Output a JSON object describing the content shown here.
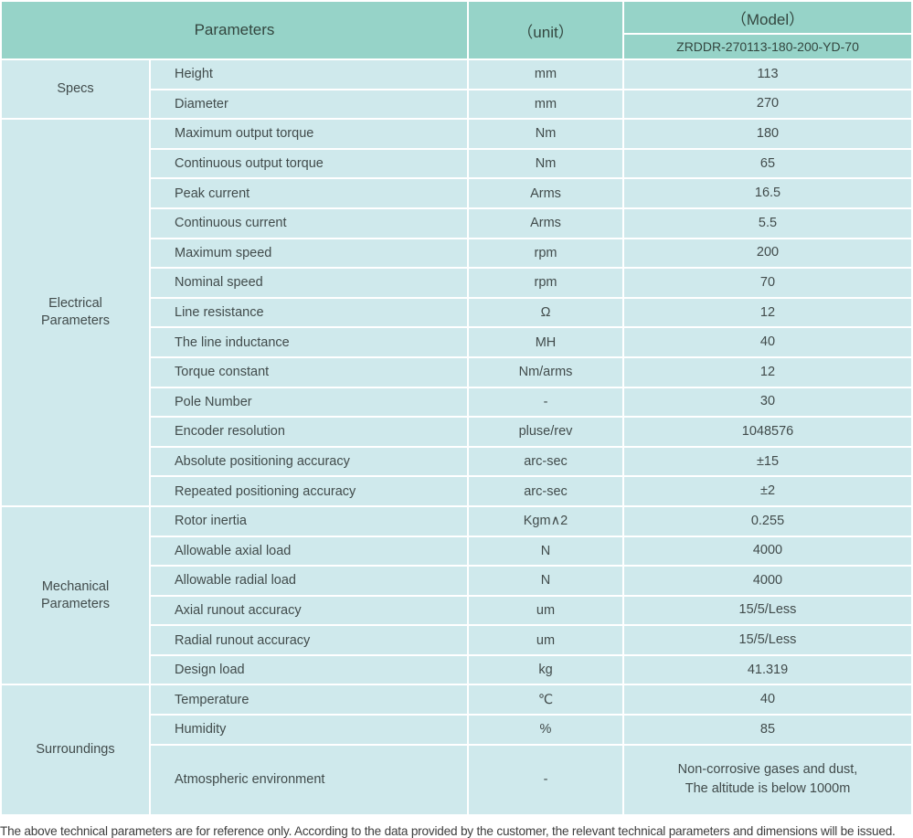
{
  "header": {
    "parameters_label": "Parameters",
    "unit_label": "（unit）",
    "model_label": "（Model）",
    "model_code": "ZRDDR-270113-180-200-YD-70"
  },
  "sections": [
    {
      "category": "Specs",
      "rows": [
        {
          "param": "Height",
          "unit": "mm",
          "value": "113"
        },
        {
          "param": "Diameter",
          "unit": "mm",
          "value": "270"
        }
      ]
    },
    {
      "category": "Electrical\nParameters",
      "rows": [
        {
          "param": "Maximum output torque",
          "unit": "Nm",
          "value": "180"
        },
        {
          "param": "Continuous output torque",
          "unit": "Nm",
          "value": "65"
        },
        {
          "param": "Peak current",
          "unit": "Arms",
          "value": "16.5"
        },
        {
          "param": "Continuous current",
          "unit": "Arms",
          "value": "5.5"
        },
        {
          "param": "Maximum speed",
          "unit": "rpm",
          "value": "200"
        },
        {
          "param": "Nominal speed",
          "unit": "rpm",
          "value": "70"
        },
        {
          "param": "Line resistance",
          "unit": "Ω",
          "value": "12"
        },
        {
          "param": "The line inductance",
          "unit": "MH",
          "value": "40"
        },
        {
          "param": "Torque constant",
          "unit": "Nm/arms",
          "value": "12"
        },
        {
          "param": "Pole Number",
          "unit": "-",
          "value": "30"
        },
        {
          "param": "Encoder resolution",
          "unit": "pluse/rev",
          "value": "1048576"
        },
        {
          "param": "Absolute positioning accuracy",
          "unit": "arc-sec",
          "value": "±15"
        },
        {
          "param": "Repeated positioning accuracy",
          "unit": "arc-sec",
          "value": "±2"
        }
      ]
    },
    {
      "category": "Mechanical\nParameters",
      "rows": [
        {
          "param": "Rotor inertia",
          "unit": "Kgm∧2",
          "value": "0.255"
        },
        {
          "param": "Allowable axial load",
          "unit": "N",
          "value": "4000"
        },
        {
          "param": "Allowable radial load",
          "unit": "N",
          "value": "4000"
        },
        {
          "param": "Axial runout accuracy",
          "unit": "um",
          "value": "15/5/Less"
        },
        {
          "param": "Radial runout accuracy",
          "unit": "um",
          "value": "15/5/Less"
        },
        {
          "param": "Design load",
          "unit": "kg",
          "value": "41.319"
        }
      ]
    },
    {
      "category": "Surroundings",
      "rows": [
        {
          "param": "Temperature",
          "unit": "℃",
          "value": "40"
        },
        {
          "param": "Humidity",
          "unit": "%",
          "value": "85"
        },
        {
          "param": "Atmospheric environment",
          "unit": "-",
          "value": "Non-corrosive gases and dust,\nThe altitude is below 1000m",
          "tall": true
        }
      ]
    }
  ],
  "footer": {
    "note": "The above technical parameters are for reference only. According to the data provided by the customer, the relevant technical parameters and dimensions will be issued."
  },
  "colors": {
    "header_bg": "#96d3c8",
    "body_bg": "#cfe9ec",
    "text": "#414b4b"
  }
}
